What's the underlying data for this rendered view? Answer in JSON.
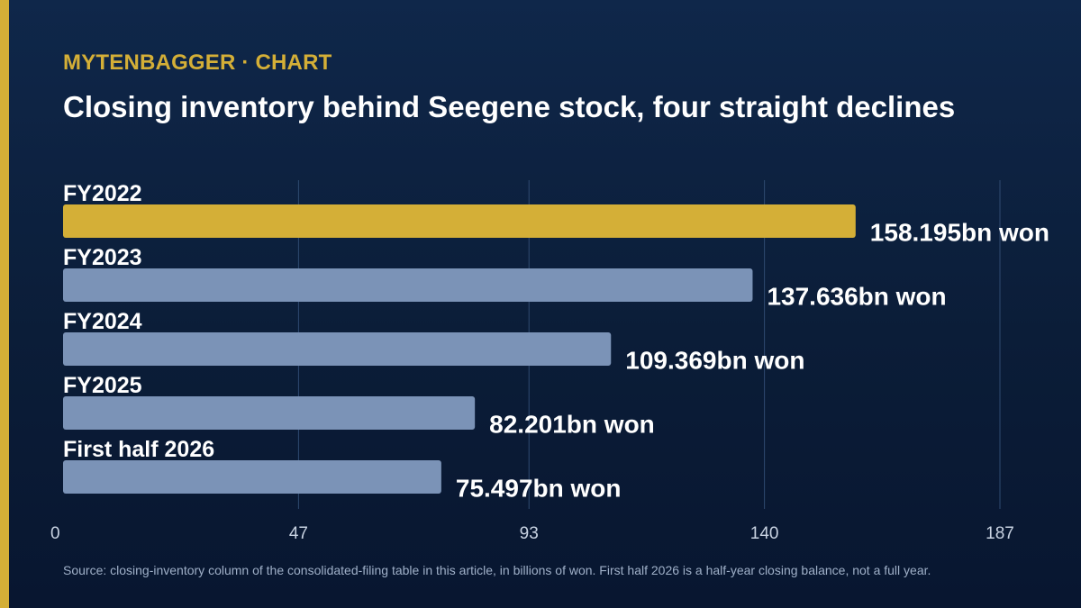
{
  "header": {
    "kicker": "MYTENBAGGER · CHART",
    "title": "Closing inventory behind Seegene stock, four straight declines"
  },
  "colors": {
    "accent": "#d4af37",
    "highlight_bar": "#d4af37",
    "bar": "#7b93b7",
    "gridline": "#2f4a70",
    "tick_label": "#c9d3e2"
  },
  "chart_data": {
    "type": "bar",
    "orientation": "horizontal",
    "title": "Closing inventory behind Seegene stock, four straight declines",
    "categories": [
      "FY2022",
      "FY2023",
      "FY2024",
      "FY2025",
      "First half 2026"
    ],
    "values": [
      158.195,
      137.636,
      109.369,
      82.201,
      75.497
    ],
    "value_labels": [
      "158.195bn won",
      "137.636bn won",
      "109.369bn won",
      "82.201bn won",
      "75.497bn won"
    ],
    "highlight_index": 0,
    "xlim": [
      0,
      187
    ],
    "x_ticks": [
      0,
      47,
      93,
      140,
      187
    ],
    "x_tick_labels": [
      "0",
      "47",
      "93",
      "140",
      "187"
    ],
    "grid": "vertical",
    "legend": "none"
  },
  "footer": {
    "source": "Source: closing-inventory column of the consolidated-filing table in this article, in billions of won. First half 2026 is a half-year closing balance, not a full year."
  }
}
